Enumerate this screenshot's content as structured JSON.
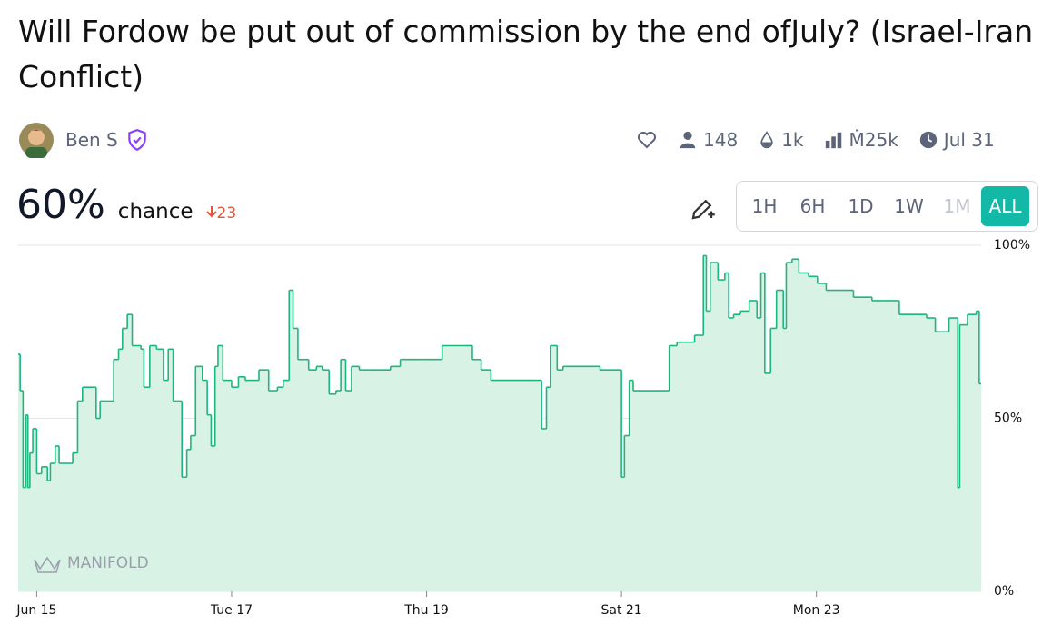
{
  "header": {
    "title": "Will Fordow be put out of commission by the end ofJuly? (Israel-Iran Conflict)",
    "author": "Ben S",
    "traders": "148",
    "liquidity": "1k",
    "volume": "Ṁ25k",
    "close_date": "Jul 31"
  },
  "probability": {
    "value": "60%",
    "label": "chance",
    "change": "23"
  },
  "time_ranges": [
    "1H",
    "6H",
    "1D",
    "1W",
    "1M",
    "ALL"
  ],
  "watermark": "MANIFOLD",
  "chart_data": {
    "type": "step-area",
    "color": "#1fb57f",
    "fill": "#d8f2e6",
    "grid": true,
    "x": [
      14.81,
      14.83,
      14.86,
      14.89,
      14.91,
      14.93,
      14.96,
      15.0,
      15.05,
      15.11,
      15.14,
      15.19,
      15.23,
      15.33,
      15.37,
      15.42,
      15.47,
      15.56,
      15.61,
      15.65,
      15.73,
      15.79,
      15.84,
      15.88,
      15.93,
      15.98,
      16.07,
      16.1,
      16.16,
      16.23,
      16.3,
      16.35,
      16.4,
      16.44,
      16.49,
      16.54,
      16.58,
      16.63,
      16.7,
      16.75,
      16.79,
      16.83,
      16.86,
      16.91,
      17.0,
      17.07,
      17.14,
      17.28,
      17.38,
      17.47,
      17.53,
      17.59,
      17.63,
      17.68,
      17.75,
      17.79,
      17.87,
      17.93,
      18.0,
      18.07,
      18.12,
      18.17,
      18.23,
      18.31,
      18.4,
      18.63,
      18.73,
      18.96,
      19.16,
      19.4,
      19.47,
      19.56,
      19.66,
      20.12,
      20.18,
      20.23,
      20.27,
      20.34,
      20.4,
      20.78,
      21.0,
      21.03,
      21.08,
      21.12,
      21.46,
      21.49,
      21.57,
      21.66,
      21.75,
      21.84,
      21.87,
      21.91,
      21.99,
      22.06,
      22.1,
      22.15,
      22.22,
      22.31,
      22.39,
      22.43,
      22.47,
      22.53,
      22.59,
      22.66,
      22.69,
      22.75,
      22.82,
      22.92,
      23.01,
      23.1,
      23.24,
      23.38,
      23.57,
      23.71,
      23.85,
      24.13,
      24.22,
      24.36,
      24.45,
      24.47,
      24.55,
      24.64,
      24.67
    ],
    "values": [
      68.5,
      58,
      30,
      51,
      30,
      40,
      47,
      34,
      36,
      32,
      37,
      42,
      37,
      37,
      40,
      55,
      59,
      59,
      50,
      55,
      55,
      67,
      70,
      76,
      80,
      71,
      70,
      59,
      71,
      70,
      61,
      70,
      55,
      55,
      33,
      41,
      45,
      65,
      61,
      51,
      42,
      65,
      71,
      61,
      59,
      62,
      61,
      64,
      58,
      59,
      61,
      87,
      76,
      67,
      67,
      64,
      65,
      64,
      57,
      58,
      67,
      58,
      65,
      64,
      64,
      65,
      67,
      67,
      71,
      71,
      67,
      64,
      61,
      61,
      47,
      59,
      71,
      64,
      65,
      64,
      33,
      45,
      61,
      58,
      58,
      71,
      72,
      72,
      74,
      97,
      81,
      95,
      90,
      92,
      79,
      80,
      81,
      84,
      79,
      92,
      63,
      76,
      87,
      76,
      95,
      96,
      92,
      91,
      89,
      87,
      87,
      85,
      84,
      84,
      80,
      79,
      75,
      79,
      30,
      77,
      80,
      81,
      60
    ],
    "xlim": [
      14.81,
      24.69
    ],
    "ylim": [
      0,
      100
    ],
    "xticks": [
      {
        "value": 15,
        "label": "Jun 15"
      },
      {
        "value": 17,
        "label": "Tue 17"
      },
      {
        "value": 19,
        "label": "Thu 19"
      },
      {
        "value": 21,
        "label": "Sat 21"
      },
      {
        "value": 23,
        "label": "Mon 23"
      }
    ],
    "yticks": [
      {
        "value": 0,
        "label": "0%"
      },
      {
        "value": 50,
        "label": "50%"
      },
      {
        "value": 100,
        "label": "100%"
      }
    ]
  }
}
